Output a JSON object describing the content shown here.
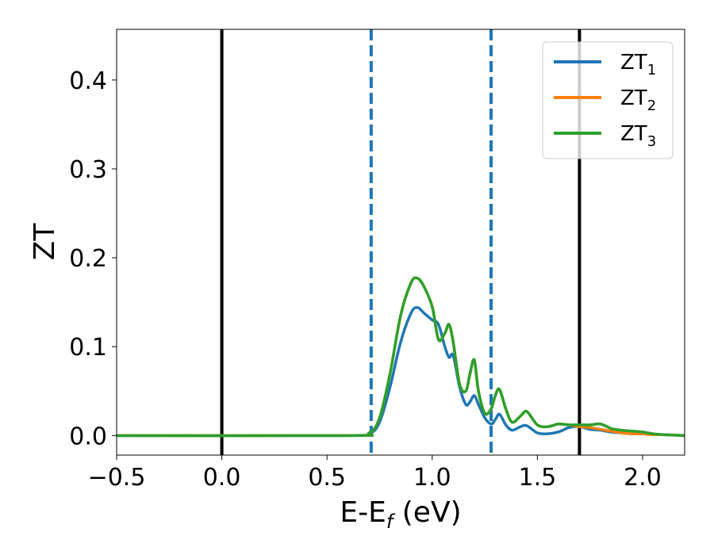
{
  "chart_data": {
    "type": "line",
    "xlabel": {
      "main": "E-E",
      "sub": "f",
      "unit": " (eV)"
    },
    "ylabel": "ZT",
    "xlim": [
      -0.5,
      2.2
    ],
    "ylim": [
      -0.022,
      0.457
    ],
    "xticks": [
      -0.5,
      0.0,
      0.5,
      1.0,
      1.5,
      2.0
    ],
    "xtick_labels": [
      "−0.5",
      "0.0",
      "0.5",
      "1.0",
      "1.5",
      "2.0"
    ],
    "yticks": [
      0.0,
      0.1,
      0.2,
      0.3,
      0.4
    ],
    "ytick_labels": [
      "0.0",
      "0.1",
      "0.2",
      "0.3",
      "0.4"
    ],
    "grid": false,
    "legend_position": "top-right",
    "vertical_lines": [
      {
        "x": 0.0,
        "style": "solid",
        "color": "#000000"
      },
      {
        "x": 0.71,
        "style": "dashed",
        "color": "#1f77b4"
      },
      {
        "x": 1.28,
        "style": "dashed",
        "color": "#1f77b4"
      },
      {
        "x": 1.7,
        "style": "solid",
        "color": "#000000"
      }
    ],
    "series": [
      {
        "legend_main": "ZT",
        "legend_sub": "1",
        "color": "#1f77b4",
        "x": [
          -0.5,
          0.6,
          0.7,
          0.75,
          0.8,
          0.85,
          0.9,
          0.93,
          0.96,
          1.0,
          1.03,
          1.06,
          1.08,
          1.1,
          1.13,
          1.16,
          1.18,
          1.2,
          1.22,
          1.25,
          1.28,
          1.3,
          1.32,
          1.35,
          1.38,
          1.42,
          1.45,
          1.5,
          1.55,
          1.6,
          1.65,
          1.7,
          1.75,
          1.8,
          1.85,
          1.9,
          1.95,
          2.0,
          2.05,
          2.1,
          2.2
        ],
        "y": [
          0.0,
          0.0,
          0.002,
          0.015,
          0.055,
          0.105,
          0.138,
          0.144,
          0.138,
          0.13,
          0.125,
          0.1,
          0.088,
          0.09,
          0.055,
          0.035,
          0.038,
          0.045,
          0.035,
          0.02,
          0.013,
          0.018,
          0.024,
          0.012,
          0.006,
          0.01,
          0.011,
          0.003,
          0.002,
          0.004,
          0.009,
          0.01,
          0.007,
          0.006,
          0.004,
          0.003,
          0.002,
          0.002,
          0.001,
          0.001,
          0.0
        ]
      },
      {
        "legend_main": "ZT",
        "legend_sub": "2",
        "color": "#ff7f0e",
        "x": [
          -0.5,
          0.6,
          0.7,
          0.75,
          0.8,
          0.85,
          0.9,
          0.93,
          0.96,
          1.0,
          1.03,
          1.06,
          1.08,
          1.1,
          1.13,
          1.16,
          1.18,
          1.2,
          1.22,
          1.25,
          1.28,
          1.3,
          1.32,
          1.35,
          1.38,
          1.42,
          1.45,
          1.5,
          1.55,
          1.6,
          1.65,
          1.7,
          1.75,
          1.8,
          1.85,
          1.9,
          1.95,
          2.0,
          2.05,
          2.1,
          2.2
        ],
        "y": [
          0.0,
          0.0,
          0.003,
          0.02,
          0.07,
          0.135,
          0.172,
          0.177,
          0.168,
          0.145,
          0.108,
          0.115,
          0.125,
          0.105,
          0.058,
          0.05,
          0.07,
          0.085,
          0.05,
          0.025,
          0.03,
          0.045,
          0.052,
          0.03,
          0.015,
          0.022,
          0.027,
          0.012,
          0.01,
          0.013,
          0.012,
          0.01,
          0.009,
          0.007,
          0.005,
          0.003,
          0.002,
          0.002,
          0.001,
          0.001,
          0.0
        ]
      },
      {
        "legend_main": "ZT",
        "legend_sub": "3",
        "color": "#2ca02c",
        "x": [
          -0.5,
          0.6,
          0.7,
          0.75,
          0.8,
          0.85,
          0.9,
          0.93,
          0.96,
          1.0,
          1.03,
          1.06,
          1.08,
          1.1,
          1.13,
          1.16,
          1.18,
          1.2,
          1.22,
          1.25,
          1.28,
          1.3,
          1.32,
          1.35,
          1.38,
          1.42,
          1.45,
          1.5,
          1.55,
          1.6,
          1.65,
          1.7,
          1.75,
          1.8,
          1.85,
          1.9,
          1.95,
          2.0,
          2.05,
          2.1,
          2.2
        ],
        "y": [
          0.0,
          0.0,
          0.003,
          0.02,
          0.07,
          0.135,
          0.172,
          0.177,
          0.168,
          0.145,
          0.108,
          0.115,
          0.125,
          0.105,
          0.058,
          0.05,
          0.07,
          0.085,
          0.05,
          0.025,
          0.03,
          0.045,
          0.052,
          0.03,
          0.015,
          0.022,
          0.027,
          0.012,
          0.01,
          0.013,
          0.012,
          0.012,
          0.012,
          0.013,
          0.008,
          0.006,
          0.005,
          0.004,
          0.002,
          0.001,
          0.0
        ]
      }
    ]
  }
}
